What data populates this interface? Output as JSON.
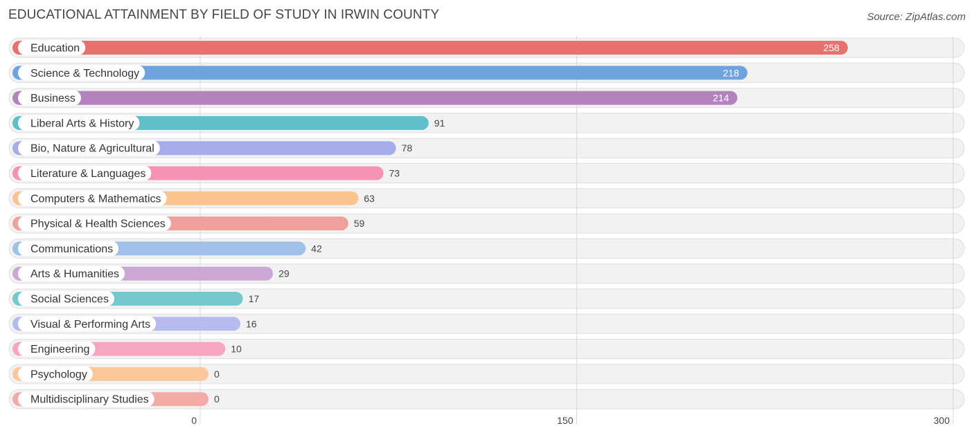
{
  "header": {
    "title": "EDUCATIONAL ATTAINMENT BY FIELD OF STUDY IN IRWIN COUNTY",
    "source": "Source: ZipAtlas.com"
  },
  "chart_data": {
    "type": "bar",
    "orientation": "horizontal",
    "title": "EDUCATIONAL ATTAINMENT BY FIELD OF STUDY IN IRWIN COUNTY",
    "xlabel": "",
    "ylabel": "",
    "xlim": [
      0,
      300
    ],
    "ticks": [
      0,
      150,
      300
    ],
    "tick_labels": [
      "0",
      "150",
      "300"
    ],
    "categories": [
      "Education",
      "Science & Technology",
      "Business",
      "Liberal Arts & History",
      "Bio, Nature & Agricultural",
      "Literature & Languages",
      "Computers & Mathematics",
      "Physical & Health Sciences",
      "Communications",
      "Arts & Humanities",
      "Social Sciences",
      "Visual & Performing Arts",
      "Engineering",
      "Psychology",
      "Multidisciplinary Studies"
    ],
    "values": [
      258,
      218,
      214,
      91,
      78,
      73,
      63,
      59,
      42,
      29,
      17,
      16,
      10,
      0,
      0
    ],
    "value_labels": [
      "258",
      "218",
      "214",
      "91",
      "78",
      "73",
      "63",
      "59",
      "42",
      "29",
      "17",
      "16",
      "10",
      "0",
      "0"
    ],
    "colors": [
      "#e8706e",
      "#6ea3df",
      "#b283bd",
      "#5ebfc8",
      "#a5acea",
      "#f593b3",
      "#fbc48f",
      "#f0a09c",
      "#9fc0e8",
      "#cba8d4",
      "#74c9cf",
      "#b5bbee",
      "#f7a5c0",
      "#fbc79b",
      "#f3aaa7"
    ],
    "grid": true
  }
}
